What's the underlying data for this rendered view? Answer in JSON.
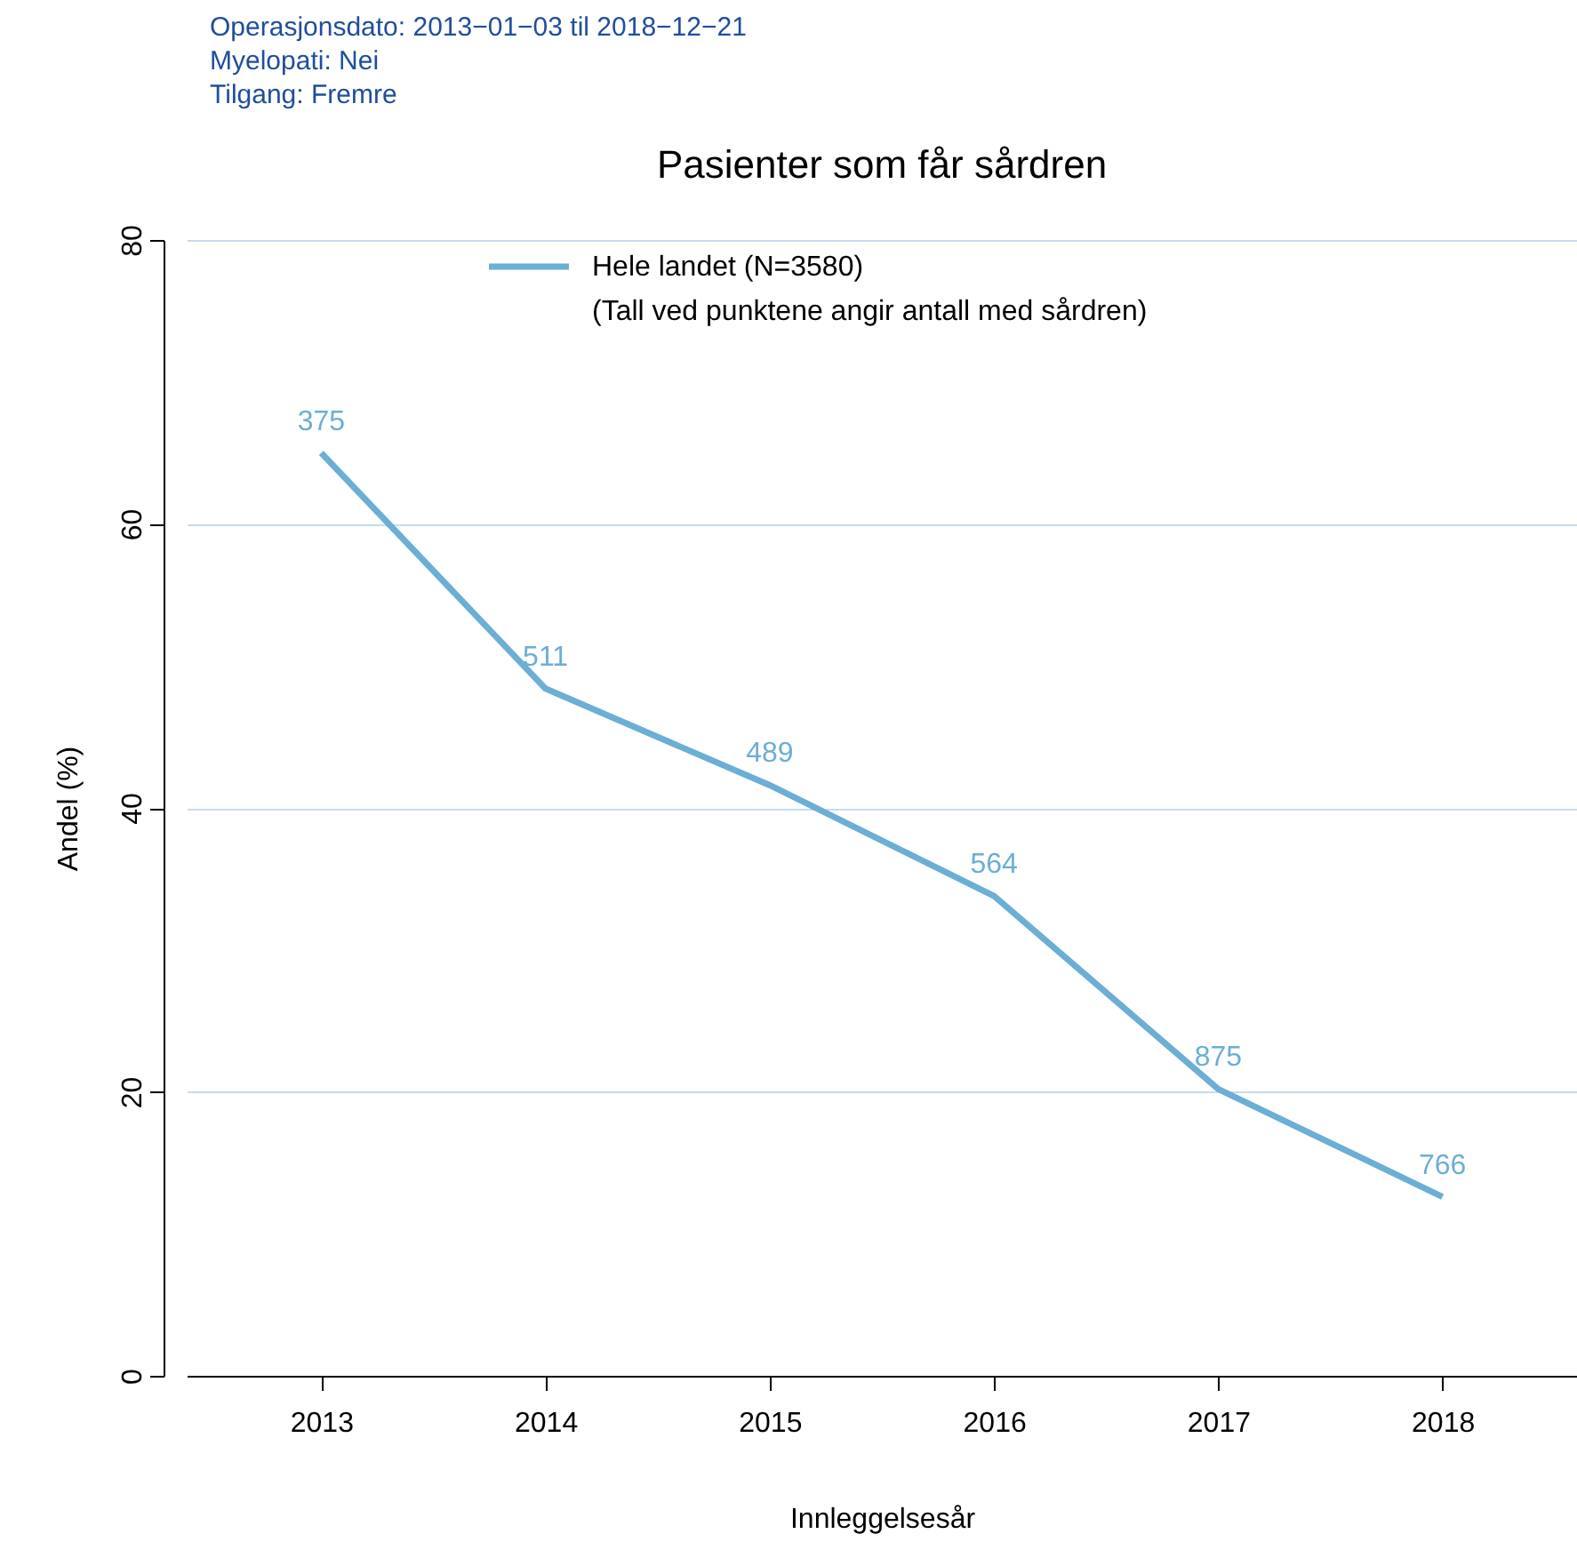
{
  "chart_data": {
    "type": "line",
    "title": "Pasienter som får sårdren",
    "xlabel": "Innleggelsesår",
    "ylabel": "Andel (%)",
    "categories": [
      "2013",
      "2014",
      "2015",
      "2016",
      "2017",
      "2018"
    ],
    "series": [
      {
        "name": "Hele landet (N=3580)",
        "color": "#6baed6",
        "values": [
          65.0,
          48.4,
          41.6,
          33.8,
          20.2,
          12.6
        ]
      }
    ],
    "ylim": [
      0,
      80
    ],
    "yticks": [
      0,
      20,
      40,
      60,
      80
    ],
    "grid": "y",
    "legend": "top",
    "marker": "none",
    "line_style": "solid",
    "annotations": [
      "(Tall ved punktene angir antall med sårdren)",
      "Operasjonsdato: 2013−01−03 til 2018−12−21",
      "Myelopati: Nei",
      "Tilgang: Fremre",
      {
        "text": "375",
        "x": "2013",
        "y": 65.0
      },
      {
        "text": "511",
        "x": "2014",
        "y": 48.4
      },
      {
        "text": "489",
        "x": "2015",
        "y": 41.6
      },
      {
        "text": "564",
        "x": "2016",
        "y": 33.8
      },
      {
        "text": "875",
        "x": "2017",
        "y": 20.2
      },
      {
        "text": "766",
        "x": "2018",
        "y": 12.6
      }
    ]
  }
}
